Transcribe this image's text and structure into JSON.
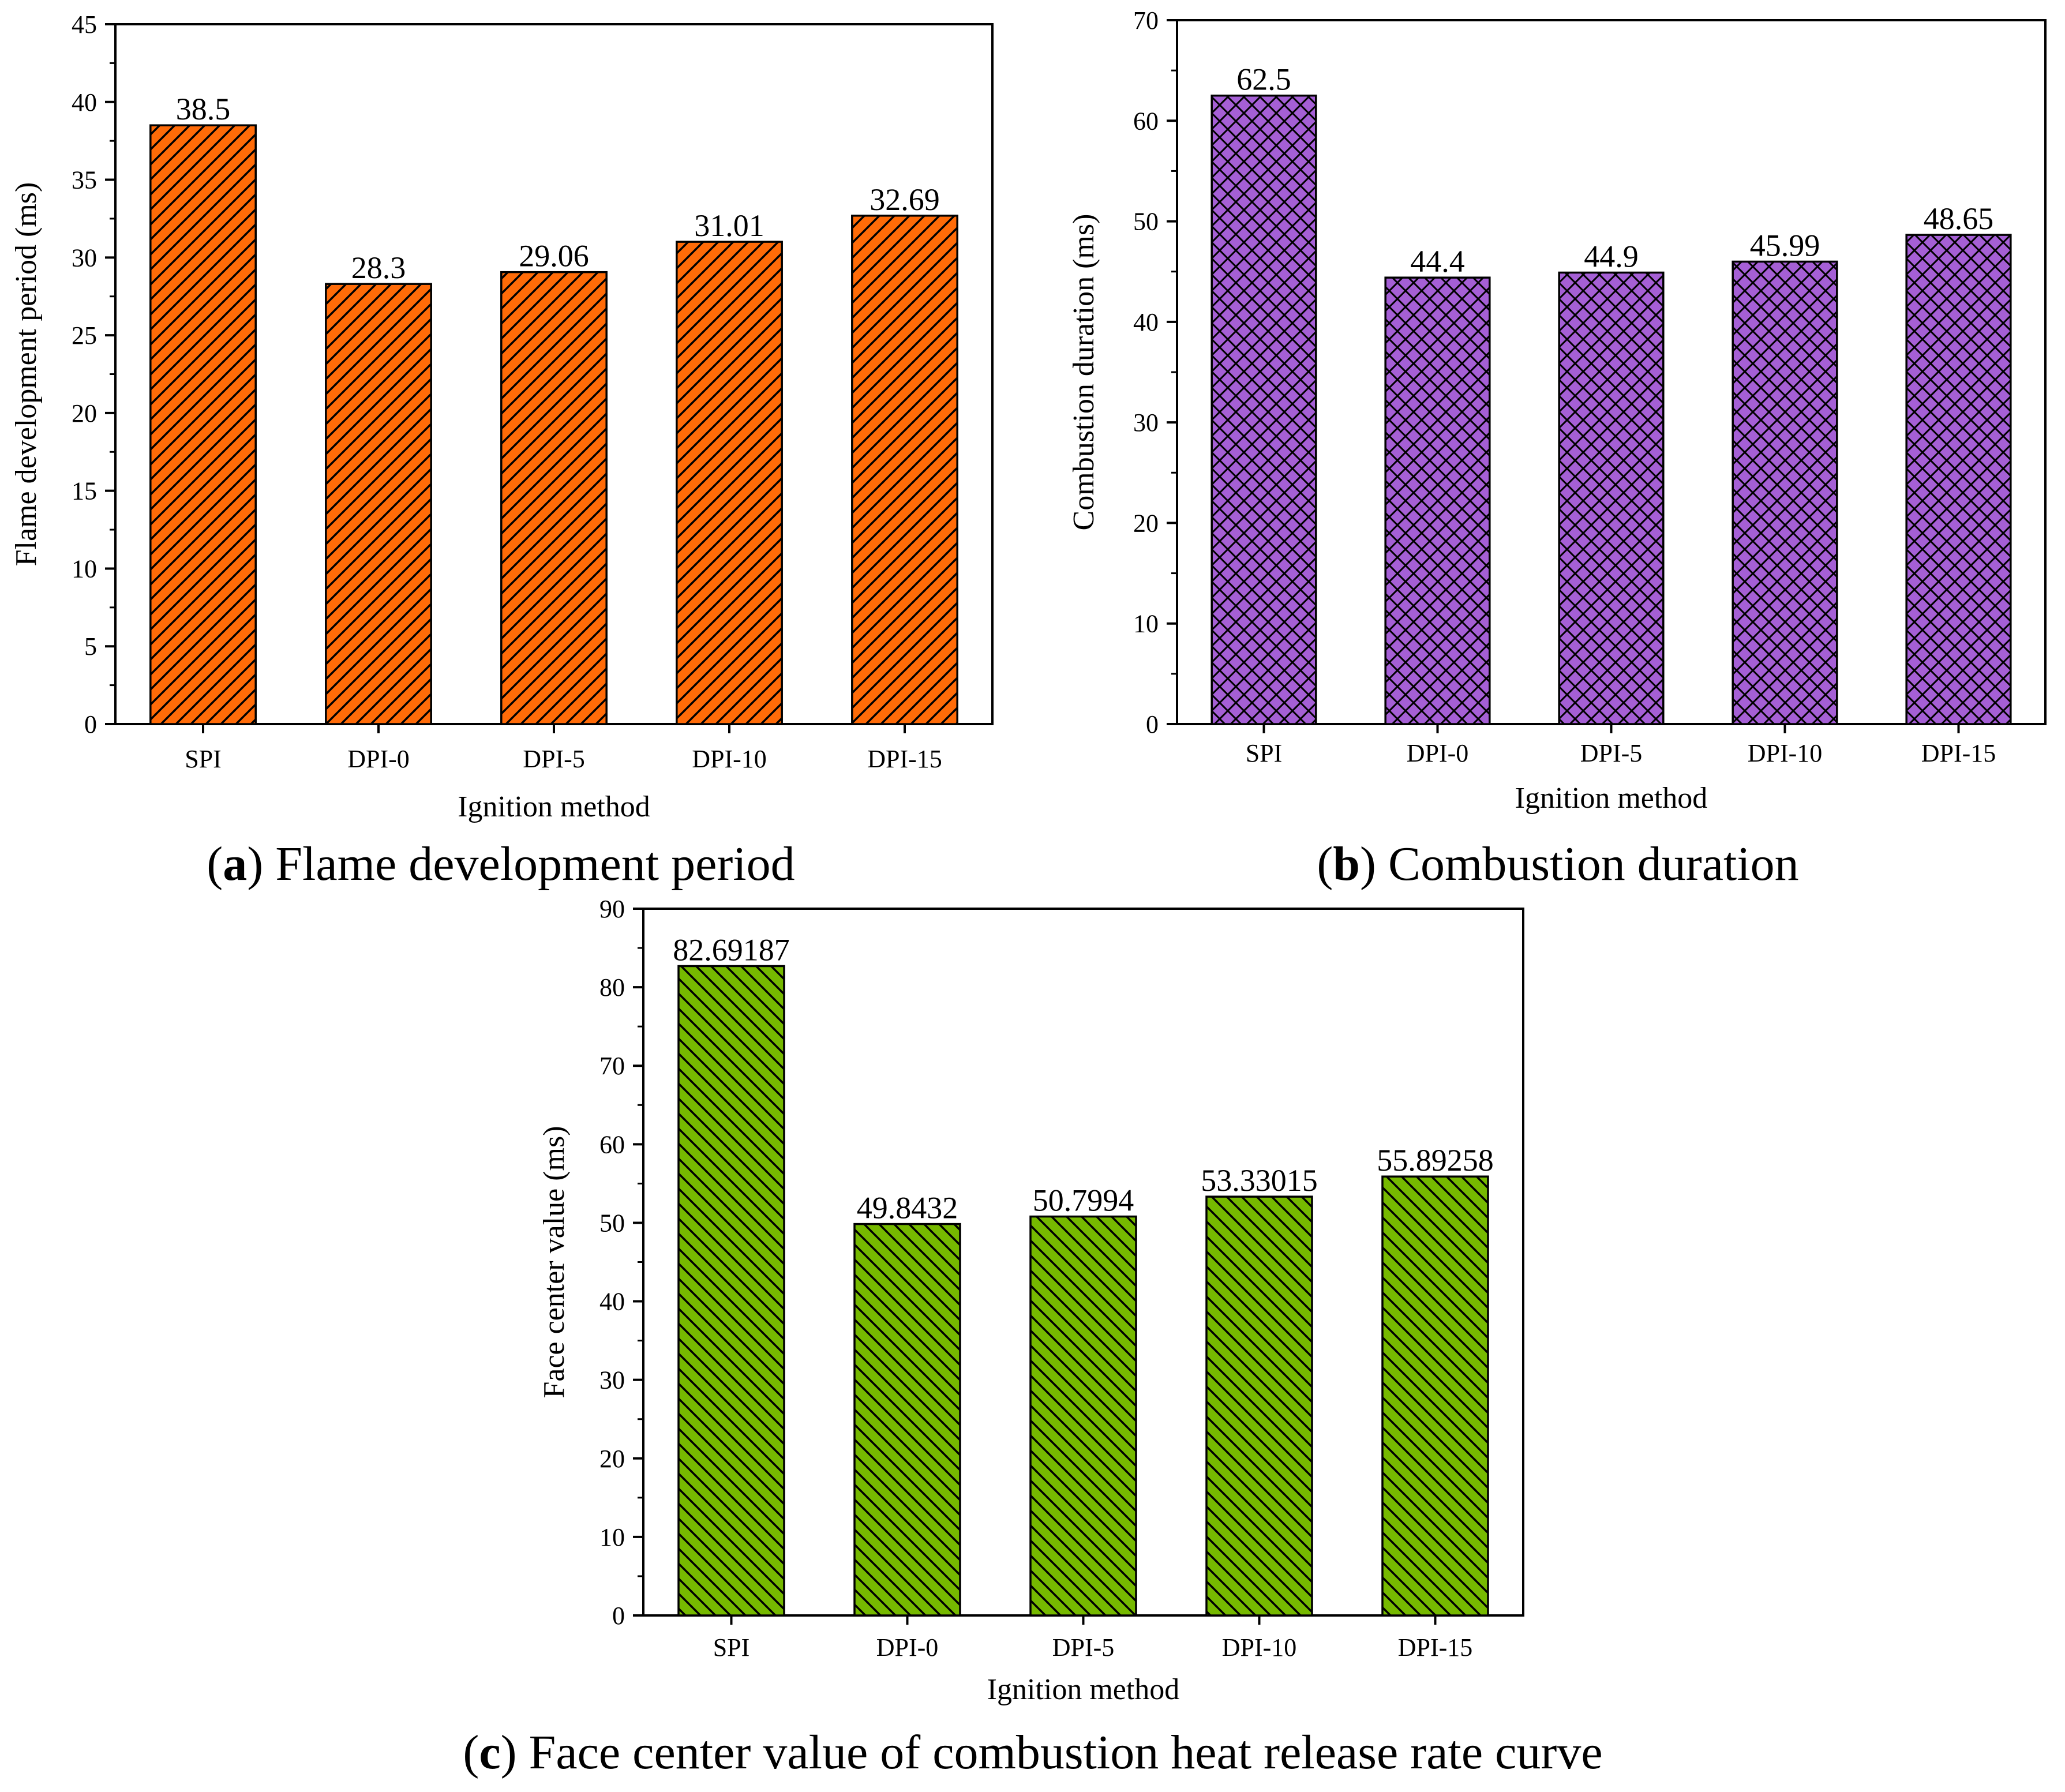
{
  "figure": {
    "panels": [
      {
        "id": "a",
        "caption_letter": "a",
        "caption_text": " Flame development period",
        "fill_color": "#ff6b08",
        "hatch": "diag-up",
        "chart_data": {
          "type": "bar",
          "categories": [
            "SPI",
            "DPI-0",
            "DPI-5",
            "DPI-10",
            "DPI-15"
          ],
          "values": [
            38.5,
            28.3,
            29.06,
            31.01,
            32.69
          ],
          "value_labels": [
            "38.5",
            "28.3",
            "29.06",
            "31.01",
            "32.69"
          ],
          "title": "",
          "xlabel": "Ignition method",
          "ylabel": "Flame development period (ms)",
          "ylim": [
            0,
            45
          ],
          "yticks": [
            0,
            5,
            10,
            15,
            20,
            25,
            30,
            35,
            40,
            45
          ],
          "grid": false,
          "legend": "none"
        }
      },
      {
        "id": "b",
        "caption_letter": "b",
        "caption_text": " Combustion duration",
        "fill_color": "#a55fd5",
        "hatch": "crosshatch",
        "chart_data": {
          "type": "bar",
          "categories": [
            "SPI",
            "DPI-0",
            "DPI-5",
            "DPI-10",
            "DPI-15"
          ],
          "values": [
            62.5,
            44.4,
            44.9,
            45.99,
            48.65
          ],
          "value_labels": [
            "62.5",
            "44.4",
            "44.9",
            "45.99",
            "48.65"
          ],
          "title": "",
          "xlabel": "Ignition method",
          "ylabel": "Combustion duration (ms)",
          "ylim": [
            0,
            70
          ],
          "yticks": [
            0,
            10,
            20,
            30,
            40,
            50,
            60,
            70
          ],
          "grid": false,
          "legend": "none"
        }
      },
      {
        "id": "c",
        "caption_letter": "c",
        "caption_text": " Face center value of combustion heat release rate curve",
        "fill_color": "#76b900",
        "hatch": "diag-down",
        "chart_data": {
          "type": "bar",
          "categories": [
            "SPI",
            "DPI-0",
            "DPI-5",
            "DPI-10",
            "DPI-15"
          ],
          "values": [
            82.69187,
            49.8432,
            50.7994,
            53.33015,
            55.89258
          ],
          "value_labels": [
            "82.69187",
            "49.8432",
            "50.7994",
            "53.33015",
            "55.89258"
          ],
          "title": "",
          "xlabel": "Ignition method",
          "ylabel": "Face center value (ms)",
          "ylim": [
            0,
            90
          ],
          "yticks": [
            0,
            10,
            20,
            30,
            40,
            50,
            60,
            70,
            80,
            90
          ],
          "grid": false,
          "legend": "none"
        }
      }
    ]
  }
}
